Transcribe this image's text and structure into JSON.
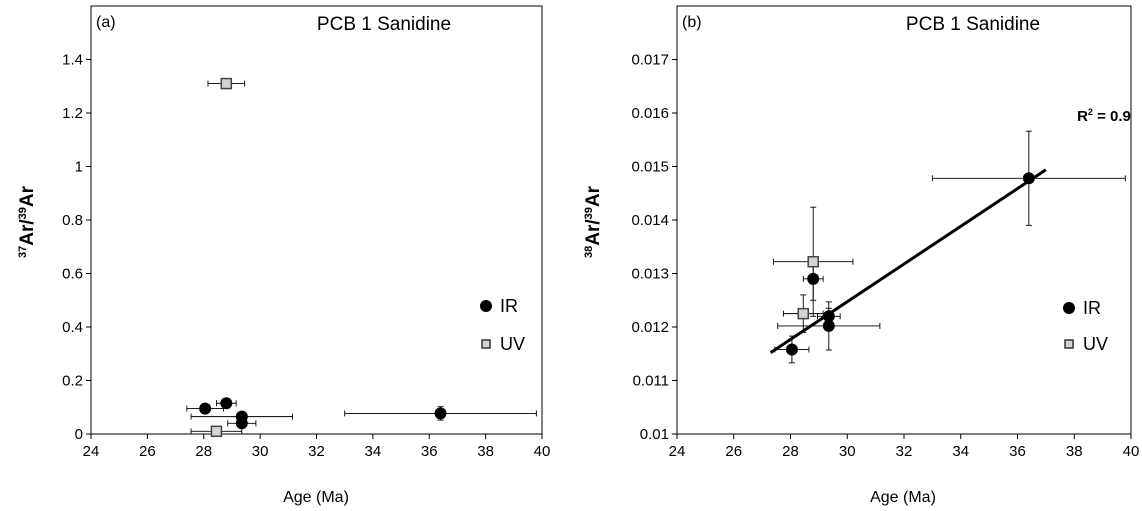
{
  "chart_data": [
    {
      "type": "scatter",
      "panel_label": "(a)",
      "title": "PCB 1 Sanidine",
      "xlabel": "Age (Ma)",
      "ylabel": {
        "iso_top": "37",
        "top": "Ar/",
        "iso_bottom": "39",
        "bottom": "Ar"
      },
      "xlim": [
        24,
        40
      ],
      "ylim": [
        0,
        1.6
      ],
      "xticks": [
        "24",
        "26",
        "28",
        "30",
        "32",
        "34",
        "36",
        "38",
        "40"
      ],
      "yticks": [
        "0",
        "0.2",
        "0.4",
        "0.6",
        "0.8",
        "1",
        "1.2",
        "1.4"
      ],
      "ytick_values": [
        0,
        0.2,
        0.4,
        0.6,
        0.8,
        1.0,
        1.2,
        1.4
      ],
      "grid": false,
      "legend_position": "right",
      "series": [
        {
          "name": "IR",
          "marker": "filled-circle",
          "points": [
            {
              "x": 28.05,
              "y": 0.095,
              "xerr": 0.65,
              "yerr": 0.01
            },
            {
              "x": 28.8,
              "y": 0.115,
              "xerr": 0.35,
              "yerr": 0.01
            },
            {
              "x": 29.35,
              "y": 0.065,
              "xerr": 1.8,
              "yerr": 0.01
            },
            {
              "x": 29.35,
              "y": 0.04,
              "xerr": 0.5,
              "yerr": 0.01
            },
            {
              "x": 36.4,
              "y": 0.077,
              "xerr": 3.4,
              "yerr": 0.025
            }
          ]
        },
        {
          "name": "UV",
          "marker": "open-square",
          "points": [
            {
              "x": 28.8,
              "y": 1.31,
              "xerr": 0.65,
              "yerr": 0.015
            },
            {
              "x": 28.45,
              "y": 0.01,
              "xerr": 0.9,
              "yerr": 0.01
            }
          ]
        }
      ]
    },
    {
      "type": "scatter",
      "panel_label": "(b)",
      "title": "PCB 1 Sanidine",
      "xlabel": "Age (Ma)",
      "ylabel": {
        "iso_top": "38",
        "top": "Ar/",
        "iso_bottom": "39",
        "bottom": "Ar"
      },
      "xlim": [
        24,
        40
      ],
      "ylim": [
        0.01,
        0.018
      ],
      "xticks": [
        "24",
        "26",
        "28",
        "30",
        "32",
        "34",
        "36",
        "38",
        "40"
      ],
      "yticks": [
        "0.01",
        "0.011",
        "0.012",
        "0.013",
        "0.014",
        "0.015",
        "0.016",
        "0.017"
      ],
      "ytick_values": [
        0.01,
        0.011,
        0.012,
        0.013,
        0.014,
        0.015,
        0.016,
        0.017
      ],
      "grid": false,
      "legend_position": "right",
      "annotation": {
        "text_main": "R",
        "text_sup": "2",
        "text_tail": " = 0.9",
        "x": 38.1,
        "y": 0.01585
      },
      "trendline": {
        "x": [
          27.3,
          37.0
        ],
        "y": [
          0.01152,
          0.01494
        ]
      },
      "series": [
        {
          "name": "IR",
          "marker": "filled-circle",
          "points": [
            {
              "x": 28.05,
              "y": 0.01158,
              "xerr": 0.6,
              "yerr": 0.00025
            },
            {
              "x": 28.8,
              "y": 0.0129,
              "xerr": 0.35,
              "yerr": 0.0004
            },
            {
              "x": 29.35,
              "y": 0.0122,
              "xerr": 0.4,
              "yerr": 0.00015
            },
            {
              "x": 29.35,
              "y": 0.01202,
              "xerr": 1.8,
              "yerr": 0.00045
            },
            {
              "x": 36.4,
              "y": 0.01478,
              "xerr": 3.4,
              "yerr": 0.00088
            }
          ]
        },
        {
          "name": "UV",
          "marker": "open-square",
          "points": [
            {
              "x": 28.8,
              "y": 0.01322,
              "xerr": 1.4,
              "yerr": 0.00102
            },
            {
              "x": 28.45,
              "y": 0.01225,
              "xerr": 0.7,
              "yerr": 0.00035
            }
          ]
        }
      ]
    }
  ]
}
